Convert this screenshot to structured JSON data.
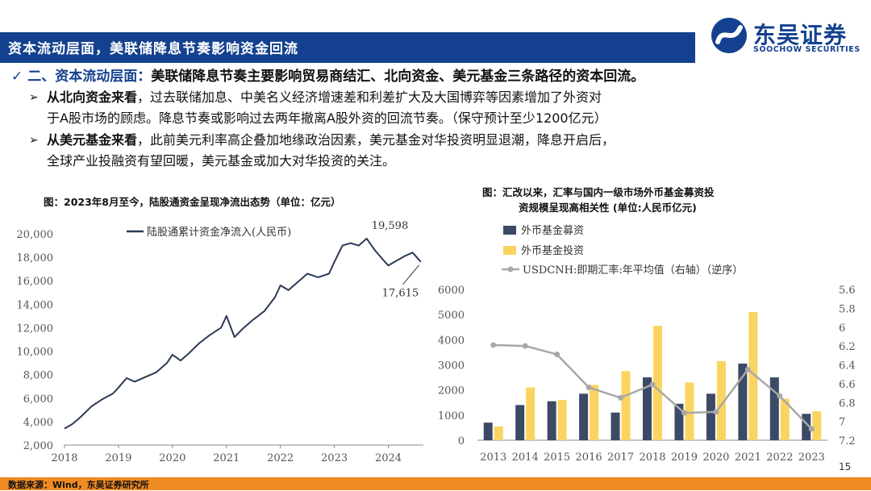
{
  "header": {
    "title": "资本流动层面，美联储降息节奏影响资金回流"
  },
  "logo": {
    "name": "东吴证券",
    "sub": "SOOCHOW SECURITIES",
    "colors": {
      "primary": "#14418f"
    }
  },
  "bullets": {
    "main_lead": "二、资本流动层面：",
    "main_rest": "美联储降息节奏主要影响贸易商结汇、北向资金、美元基金三条路径的资本回流。",
    "sub1_lead": "从北向资金来看",
    "sub1_line1": "，过去联储加息、中美名义经济增速差和利差扩大及大国博弈等因素增加了外资对",
    "sub1_line2": "于A股市场的顾虑。降息节奏或影响过去两年撤离A股外资的回流节奏。（保守预计至少1200亿元）",
    "sub2_lead": "从美元基金来看",
    "sub2_line1": "，此前美元利率高企叠加地缘政治因素，美元基金对华投资明显退潮，降息开启后，",
    "sub2_line2": "全球产业投融资有望回暖，美元基金或加大对华投资的关注。"
  },
  "footer": {
    "source": "数据来源：Wind，东吴证券研究所",
    "page": "15"
  },
  "chart_data": [
    {
      "type": "line",
      "title": "图：2023年8月至今，陆股通资金呈现净流出态势（单位：亿元）",
      "series": [
        {
          "name": "陆股通累计资金净流入(人民币)",
          "x": [
            2018.0,
            2018.15,
            2018.3,
            2018.5,
            2018.7,
            2018.9,
            2019.0,
            2019.15,
            2019.3,
            2019.5,
            2019.7,
            2019.9,
            2020.0,
            2020.15,
            2020.3,
            2020.5,
            2020.7,
            2020.9,
            2021.0,
            2021.15,
            2021.3,
            2021.5,
            2021.7,
            2021.9,
            2022.0,
            2022.15,
            2022.3,
            2022.5,
            2022.7,
            2022.9,
            2023.0,
            2023.15,
            2023.3,
            2023.45,
            2023.6,
            2023.75,
            2023.9,
            2024.0,
            2024.15,
            2024.3,
            2024.45,
            2024.6
          ],
          "values": [
            3400,
            3800,
            4400,
            5300,
            5900,
            6400,
            6900,
            7700,
            7400,
            7800,
            8200,
            9000,
            9700,
            9200,
            9800,
            10700,
            11400,
            12000,
            13000,
            11200,
            11900,
            12700,
            13400,
            14600,
            15600,
            15200,
            15800,
            16600,
            16300,
            16600,
            17600,
            19000,
            19200,
            19000,
            19598,
            18600,
            17800,
            17300,
            17700,
            18100,
            18400,
            17615
          ]
        }
      ],
      "annotations": [
        {
          "text": "19,598",
          "x": 2023.6,
          "y": 19598
        },
        {
          "text": "17,615",
          "x": 2024.6,
          "y": 17615
        }
      ],
      "xlim": [
        2018,
        2024.65
      ],
      "ylim": [
        2000,
        20000
      ],
      "yticks": [
        "2,000",
        "4,000",
        "6,000",
        "8,000",
        "10,000",
        "12,000",
        "14,000",
        "16,000",
        "18,000",
        "20,000"
      ],
      "xticks": [
        "2018",
        "2019",
        "2020",
        "2021",
        "2022",
        "2023",
        "2024"
      ],
      "legend": "top-left",
      "colors": {
        "line": "#2b3a55"
      }
    },
    {
      "type": "bar",
      "title_line1": "图：汇改以来，汇率与国内一级市场外币基金募资投",
      "title_line2": "资规模呈现高相关性 (单位:人民币亿元)",
      "categories": [
        "2013",
        "2014",
        "2015",
        "2016",
        "2017",
        "2018",
        "2019",
        "2020",
        "2021",
        "2022",
        "2023"
      ],
      "series": [
        {
          "name": "外币基金募资",
          "values": [
            700,
            1400,
            1550,
            1850,
            1100,
            2500,
            1450,
            1850,
            3050,
            2500,
            1050
          ],
          "color": "#3d4a66"
        },
        {
          "name": "外币基金投资",
          "values": [
            550,
            2100,
            1600,
            2200,
            2750,
            4550,
            2300,
            3150,
            5100,
            1650,
            1150
          ],
          "color": "#fad460"
        },
        {
          "name": "USDCNH:即期汇率:年平均值（右轴）（逆序）",
          "type": "line",
          "axis": "right",
          "values": [
            6.19,
            6.2,
            6.29,
            6.64,
            6.75,
            6.61,
            6.91,
            6.9,
            6.45,
            6.73,
            7.08
          ],
          "color": "#a8a8a8"
        }
      ],
      "ylim": [
        0,
        6000
      ],
      "yticks": [
        "0",
        "1000",
        "2000",
        "3000",
        "4000",
        "5000",
        "6000"
      ],
      "y2lim": [
        5.6,
        7.2
      ],
      "y2ticks": [
        "5.6",
        "5.8",
        "6",
        "6.2",
        "6.4",
        "6.6",
        "6.8",
        "7",
        "7.2"
      ],
      "y2_inverted": true,
      "legend": "top-left"
    }
  ]
}
